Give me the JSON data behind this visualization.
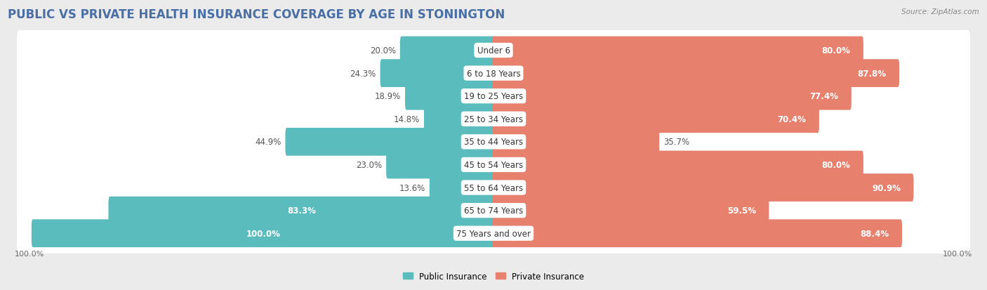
{
  "title": "PUBLIC VS PRIVATE HEALTH INSURANCE COVERAGE BY AGE IN STONINGTON",
  "source": "Source: ZipAtlas.com",
  "categories": [
    "Under 6",
    "6 to 18 Years",
    "19 to 25 Years",
    "25 to 34 Years",
    "35 to 44 Years",
    "45 to 54 Years",
    "55 to 64 Years",
    "65 to 74 Years",
    "75 Years and over"
  ],
  "public_values": [
    20.0,
    24.3,
    18.9,
    14.8,
    44.9,
    23.0,
    13.6,
    83.3,
    100.0
  ],
  "private_values": [
    80.0,
    87.8,
    77.4,
    70.4,
    35.7,
    80.0,
    90.9,
    59.5,
    88.4
  ],
  "public_color": "#5bbcbe",
  "private_color": "#e8806e",
  "bg_color": "#ebebeb",
  "bar_bg_color": "#ffffff",
  "bar_height": 0.62,
  "title_fontsize": 12,
  "label_fontsize": 8.5,
  "cat_fontsize": 8.5,
  "tick_fontsize": 8,
  "legend_fontsize": 8.5,
  "source_fontsize": 7.5,
  "max_val": 100.0
}
